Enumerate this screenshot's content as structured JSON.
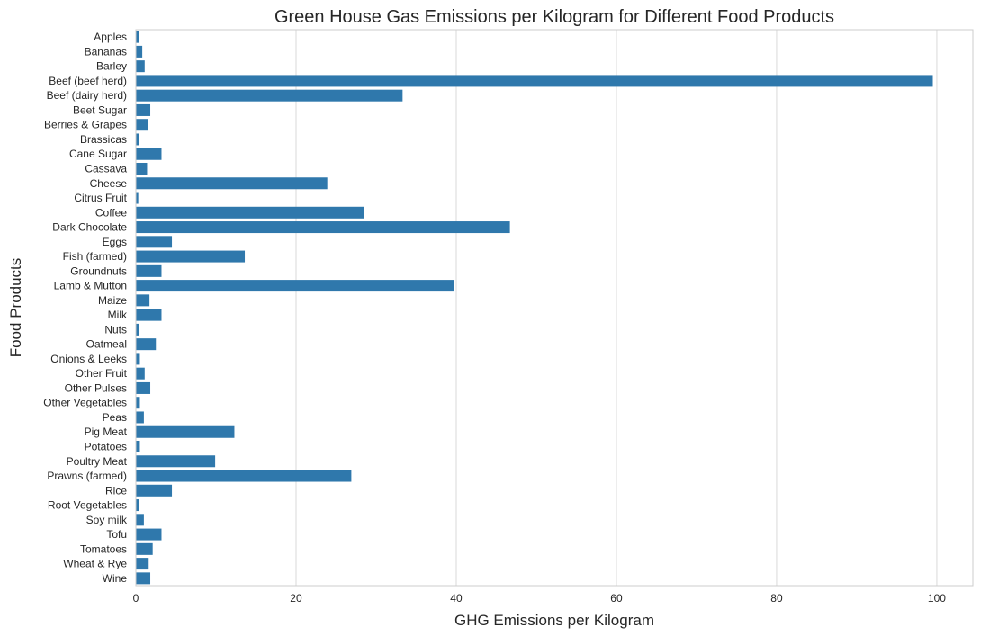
{
  "chart_data": {
    "type": "bar",
    "orientation": "horizontal",
    "title": "Green House Gas Emissions per Kilogram for Different Food Products",
    "xlabel": "GHG Emissions per Kilogram",
    "ylabel": "Food Products",
    "xlim": [
      0,
      104.5
    ],
    "xticks": [
      0,
      20,
      40,
      60,
      80,
      100
    ],
    "grid": "x",
    "bar_color": "#2f78ac",
    "categories": [
      "Apples",
      "Bananas",
      "Barley",
      "Beef (beef herd)",
      "Beef (dairy herd)",
      "Beet Sugar",
      "Berries & Grapes",
      "Brassicas",
      "Cane Sugar",
      "Cassava",
      "Cheese",
      "Citrus Fruit",
      "Coffee",
      "Dark Chocolate",
      "Eggs",
      "Fish (farmed)",
      "Groundnuts",
      "Lamb & Mutton",
      "Maize",
      "Milk",
      "Nuts",
      "Oatmeal",
      "Onions & Leeks",
      "Other Fruit",
      "Other Pulses",
      "Other Vegetables",
      "Peas",
      "Pig Meat",
      "Potatoes",
      "Poultry Meat",
      "Prawns (farmed)",
      "Rice",
      "Root Vegetables",
      "Soy milk",
      "Tofu",
      "Tomatoes",
      "Wheat & Rye",
      "Wine"
    ],
    "values": [
      0.4,
      0.8,
      1.1,
      99.5,
      33.3,
      1.8,
      1.5,
      0.4,
      3.2,
      1.4,
      23.9,
      0.3,
      28.5,
      46.7,
      4.5,
      13.6,
      3.2,
      39.7,
      1.7,
      3.2,
      0.4,
      2.5,
      0.5,
      1.1,
      1.8,
      0.5,
      1.0,
      12.3,
      0.5,
      9.9,
      26.9,
      4.5,
      0.4,
      1.0,
      3.2,
      2.1,
      1.6,
      1.8
    ]
  }
}
